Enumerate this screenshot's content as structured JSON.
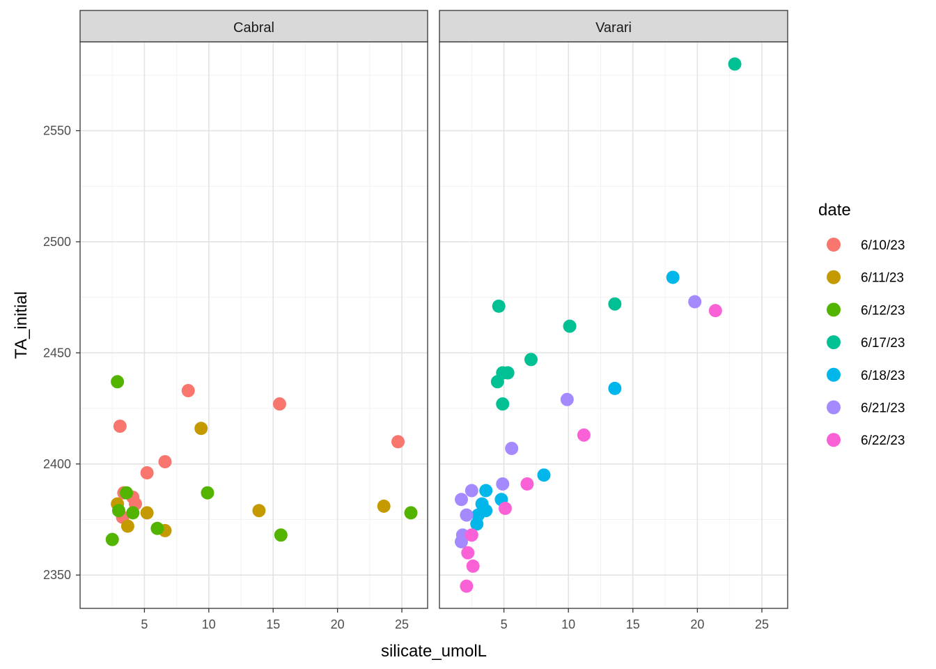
{
  "chart_data": {
    "type": "scatter",
    "title": "",
    "xlabel": "silicate_umolL",
    "ylabel": "TA_initial",
    "xlim": [
      0,
      27
    ],
    "ylim": [
      2335,
      2590
    ],
    "x_ticks": [
      5,
      10,
      15,
      20,
      25
    ],
    "y_ticks": [
      2350,
      2400,
      2450,
      2500,
      2550
    ],
    "grid": true,
    "legend": {
      "title": "date",
      "position": "right",
      "entries": [
        {
          "label": "6/10/23",
          "color": "#F8766D"
        },
        {
          "label": "6/11/23",
          "color": "#C49A00"
        },
        {
          "label": "6/12/23",
          "color": "#53B400"
        },
        {
          "label": "6/17/23",
          "color": "#00C094"
        },
        {
          "label": "6/18/23",
          "color": "#00B6EB"
        },
        {
          "label": "6/21/23",
          "color": "#A58AFF"
        },
        {
          "label": "6/22/23",
          "color": "#FB61D7"
        }
      ]
    },
    "panels": [
      {
        "title": "Cabral",
        "series": [
          {
            "name": "6/10/23",
            "points": [
              [
                3.1,
                2417
              ],
              [
                8.4,
                2433
              ],
              [
                15.5,
                2427
              ],
              [
                24.7,
                2410
              ],
              [
                6.6,
                2401
              ],
              [
                5.2,
                2396
              ],
              [
                3.4,
                2387
              ],
              [
                4.1,
                2385
              ],
              [
                3.3,
                2376
              ],
              [
                4.3,
                2382
              ]
            ]
          },
          {
            "name": "6/11/23",
            "points": [
              [
                9.4,
                2416
              ],
              [
                2.9,
                2382
              ],
              [
                3.7,
                2372
              ],
              [
                5.2,
                2378
              ],
              [
                6.6,
                2370
              ],
              [
                13.9,
                2379
              ],
              [
                23.6,
                2381
              ]
            ]
          },
          {
            "name": "6/12/23",
            "points": [
              [
                2.9,
                2437
              ],
              [
                3.6,
                2387
              ],
              [
                3.0,
                2379
              ],
              [
                4.1,
                2378
              ],
              [
                6.0,
                2371
              ],
              [
                2.5,
                2366
              ],
              [
                9.9,
                2387
              ],
              [
                15.6,
                2368
              ],
              [
                25.7,
                2378
              ]
            ]
          }
        ]
      },
      {
        "title": "Varari",
        "series": [
          {
            "name": "6/17/23",
            "points": [
              [
                22.9,
                2580
              ],
              [
                4.6,
                2471
              ],
              [
                13.6,
                2472
              ],
              [
                10.1,
                2462
              ],
              [
                7.1,
                2447
              ],
              [
                4.5,
                2437
              ],
              [
                4.9,
                2441
              ],
              [
                5.3,
                2441
              ],
              [
                4.9,
                2427
              ]
            ]
          },
          {
            "name": "6/18/23",
            "points": [
              [
                18.1,
                2484
              ],
              [
                13.6,
                2434
              ],
              [
                8.1,
                2395
              ],
              [
                4.8,
                2384
              ],
              [
                3.6,
                2388
              ],
              [
                3.3,
                2382
              ],
              [
                3.0,
                2377
              ],
              [
                3.6,
                2379
              ],
              [
                2.9,
                2373
              ]
            ]
          },
          {
            "name": "6/21/23",
            "points": [
              [
                19.8,
                2473
              ],
              [
                9.9,
                2429
              ],
              [
                5.6,
                2407
              ],
              [
                4.9,
                2391
              ],
              [
                2.5,
                2388
              ],
              [
                1.7,
                2384
              ],
              [
                2.1,
                2377
              ],
              [
                1.8,
                2368
              ],
              [
                1.7,
                2365
              ]
            ]
          },
          {
            "name": "6/22/23",
            "points": [
              [
                21.4,
                2469
              ],
              [
                11.2,
                2413
              ],
              [
                6.8,
                2391
              ],
              [
                5.1,
                2380
              ],
              [
                2.5,
                2368
              ],
              [
                2.2,
                2360
              ],
              [
                2.6,
                2354
              ],
              [
                2.1,
                2345
              ]
            ]
          }
        ]
      }
    ]
  }
}
